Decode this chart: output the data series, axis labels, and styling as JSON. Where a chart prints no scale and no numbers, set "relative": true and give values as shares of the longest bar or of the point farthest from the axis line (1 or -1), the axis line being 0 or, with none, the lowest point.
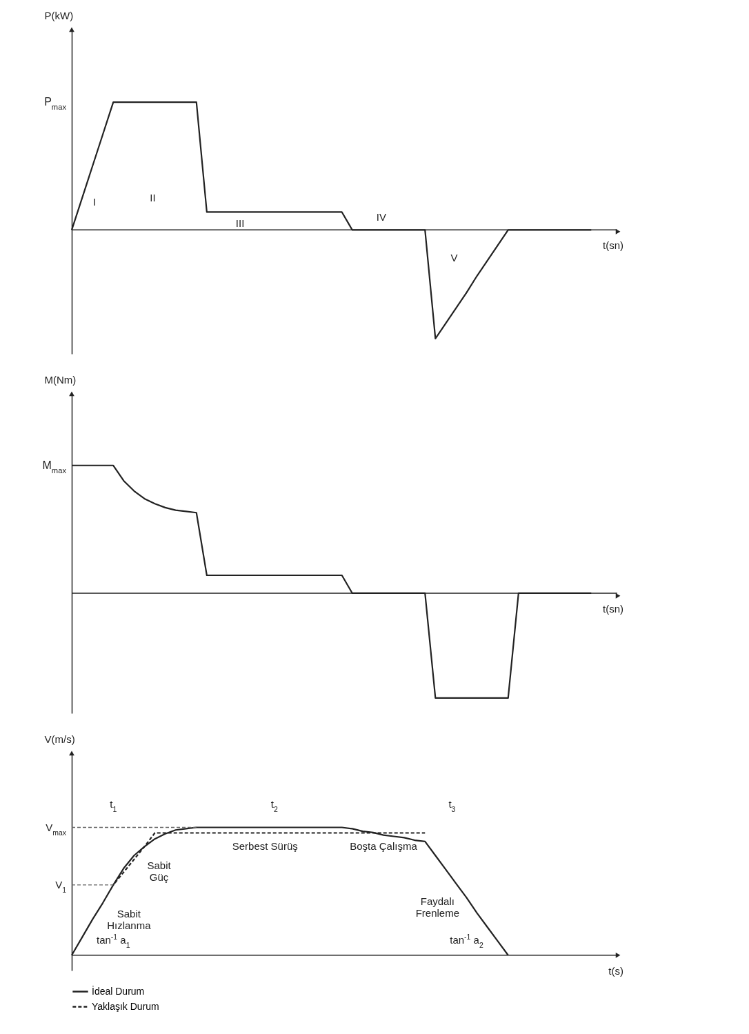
{
  "chart_data": [
    {
      "type": "line",
      "relative": true,
      "ylabel": "P(kW)",
      "xlabel": "t(sn)",
      "categories": [
        null,
        null,
        null,
        null,
        null,
        null,
        null,
        null,
        null,
        null,
        null,
        null,
        null,
        null,
        null,
        null,
        null,
        null,
        null,
        null,
        null,
        null,
        null,
        null,
        null,
        null,
        null,
        null,
        null,
        null,
        null,
        null,
        null,
        null,
        null,
        null,
        null,
        null,
        null,
        null,
        null,
        null,
        null,
        null,
        null,
        null,
        null,
        null,
        null,
        null,
        null
      ],
      "series": [
        {
          "color": "#222222",
          "values": [
            0,
            0.25,
            0.5,
            0.75,
            1,
            1,
            1,
            1,
            1,
            1,
            1,
            1,
            1,
            0.14,
            0.14,
            0.14,
            0.14,
            0.14,
            0.14,
            0.14,
            0.14,
            0.14,
            0.14,
            0.14,
            0.14,
            0.14,
            0.14,
            0,
            0,
            0,
            0,
            0,
            0,
            0,
            0,
            -0.85,
            -0.73,
            -0.61,
            -0.49,
            -0.36,
            -0.24,
            -0.12,
            0,
            0,
            0,
            0,
            0,
            0,
            0,
            0,
            0
          ]
        }
      ],
      "annotations": [
        "P$_{max}$",
        "I",
        "II",
        "III",
        "IV",
        "V"
      ]
    },
    {
      "type": "line",
      "relative": true,
      "ylabel": "M(Nm)",
      "xlabel": "t(sn)",
      "categories": [
        null,
        null,
        null,
        null,
        null,
        null,
        null,
        null,
        null,
        null,
        null,
        null,
        null,
        null,
        null,
        null,
        null,
        null,
        null,
        null,
        null,
        null,
        null,
        null,
        null,
        null,
        null,
        null,
        null,
        null,
        null,
        null,
        null,
        null,
        null,
        null,
        null,
        null,
        null,
        null,
        null,
        null,
        null,
        null,
        null,
        null,
        null,
        null,
        null,
        null,
        null
      ],
      "series": [
        {
          "color": "#222222",
          "values": [
            1,
            1,
            1,
            1,
            1,
            0.88,
            0.8,
            0.74,
            0.7,
            0.67,
            0.65,
            0.64,
            0.63,
            0.14,
            0.14,
            0.14,
            0.14,
            0.14,
            0.14,
            0.14,
            0.14,
            0.14,
            0.14,
            0.14,
            0.14,
            0.14,
            0.14,
            0,
            0,
            0,
            0,
            0,
            0,
            0,
            0,
            -0.82,
            -0.82,
            -0.82,
            -0.82,
            -0.82,
            -0.82,
            -0.82,
            -0.82,
            0,
            0,
            0,
            0,
            0,
            0,
            0,
            0
          ]
        }
      ],
      "annotations": [
        "M$_{max}$"
      ]
    },
    {
      "type": "line",
      "relative": true,
      "ylabel": "V(m/s)",
      "xlabel": "t(s)",
      "legend": "bottom",
      "categories": [
        null,
        null,
        null,
        null,
        null,
        null,
        null,
        null,
        null,
        null,
        null,
        null,
        null,
        null,
        null,
        null,
        null,
        null,
        null,
        null,
        null,
        null,
        null,
        null,
        null,
        null,
        null,
        null,
        null,
        null,
        null,
        null,
        null,
        null,
        null,
        null,
        null,
        null,
        null,
        null,
        null,
        null,
        null,
        null,
        null,
        null,
        null,
        null,
        null,
        null,
        null
      ],
      "series": [
        {
          "name": "İdeal Durum",
          "color": "#222222",
          "line_style": "solid",
          "values": [
            0,
            0.14,
            0.28,
            0.41,
            0.55,
            0.68,
            0.78,
            0.85,
            0.91,
            0.95,
            0.98,
            0.99,
            1,
            1,
            1,
            1,
            1,
            1,
            1,
            1,
            1,
            1,
            1,
            1,
            1,
            1,
            1,
            0.99,
            0.97,
            0.96,
            0.94,
            0.93,
            0.92,
            0.9,
            0.89,
            0.78,
            0.67,
            0.56,
            0.45,
            0.33,
            0.22,
            0.11,
            0,
            null,
            null,
            null,
            null,
            null,
            null,
            null,
            null
          ]
        },
        {
          "name": "Yaklaşık Durum",
          "color": "#222222",
          "line_style": "dashed",
          "values": [
            null,
            null,
            null,
            null,
            0.55,
            0.65,
            0.75,
            0.85,
            0.957,
            0.957,
            0.957,
            0.957,
            0.957,
            0.957,
            0.957,
            0.957,
            0.957,
            0.957,
            0.957,
            0.957,
            0.957,
            0.957,
            0.957,
            0.957,
            0.957,
            0.957,
            0.957,
            0.957,
            0.957,
            0.957,
            0.957,
            0.957,
            0.957,
            0.957,
            0.957,
            null,
            null,
            null,
            null,
            null,
            null,
            null,
            null,
            null,
            null,
            null,
            null,
            null,
            null,
            null,
            null
          ]
        }
      ],
      "ref_lines": [
        {
          "axis": "y",
          "value": 1,
          "label": "V$_{max}$",
          "line_style": "dashed",
          "color": "#666666"
        },
        {
          "axis": "y",
          "value": 0.55,
          "label": "V$_{1}$",
          "line_style": "dashed",
          "color": "#666666"
        }
      ],
      "annotations": [
        "t$_{1}$",
        "t$_{2}$",
        "t$_{3}$",
        "Serbest Sürüş",
        "Boşta Çalışma",
        "Sabit\nGüç",
        "Sabit\nHızlanma",
        "Faydalı\nFrenleme",
        "tan$^{-1}$ a$_{1}$",
        "tan$^{-1}$ a$_{2}$"
      ]
    }
  ]
}
